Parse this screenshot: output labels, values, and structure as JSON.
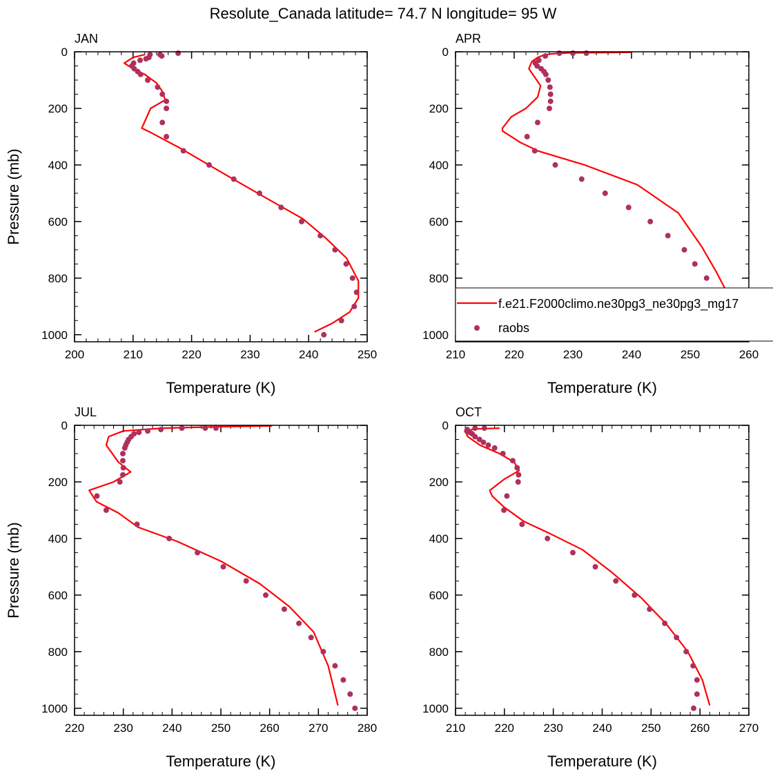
{
  "figure_title": "Resolute_Canada  latitude= 74.7 N longitude= 95 W",
  "legend": {
    "model_label": "f.e21.F2000climo.ne30pg3_ne30pg3_mg17",
    "obs_label": "raobs"
  },
  "colors": {
    "model_line": "#ff0000",
    "obs_marker": "#b0305c"
  },
  "chart_data": [
    {
      "type": "line",
      "panel_label": "JAN",
      "xlabel": "Temperature (K)",
      "ylabel": "Pressure (mb)",
      "xlim": [
        200,
        250
      ],
      "ylim": [
        1025,
        0
      ],
      "x_ticks": [
        200,
        210,
        220,
        230,
        240,
        250
      ],
      "y_ticks": [
        0,
        200,
        400,
        600,
        800,
        1000
      ],
      "series": [
        {
          "kind": "line",
          "points": [
            [
              212,
              10
            ],
            [
              210,
              20
            ],
            [
              208.5,
              40
            ],
            [
              210,
              60
            ],
            [
              212,
              80
            ],
            [
              214,
              110
            ],
            [
              215,
              140
            ],
            [
              215.5,
              170
            ],
            [
              213,
              200
            ],
            [
              211.5,
              270
            ],
            [
              213,
              285
            ],
            [
              218,
              340
            ],
            [
              225,
              425
            ],
            [
              233,
              520
            ],
            [
              239,
              590
            ],
            [
              243,
              660
            ],
            [
              246.5,
              730
            ],
            [
              248.5,
              810
            ],
            [
              248.5,
              870
            ],
            [
              247,
              920
            ],
            [
              244,
              960
            ],
            [
              241,
              990
            ]
          ]
        },
        {
          "kind": "scatter",
          "points": [
            [
              217.7,
              5
            ],
            [
              214.9,
              15
            ],
            [
              214.6,
              10
            ],
            [
              212.9,
              10
            ],
            [
              212.7,
              20
            ],
            [
              212.2,
              25
            ],
            [
              211.2,
              30
            ],
            [
              210.1,
              40
            ],
            [
              209.8,
              50
            ],
            [
              210.2,
              60
            ],
            [
              210.8,
              70
            ],
            [
              211.3,
              80
            ],
            [
              212.5,
              100
            ],
            [
              214.2,
              125
            ],
            [
              215.0,
              150
            ],
            [
              215.7,
              175
            ],
            [
              215.7,
              200
            ],
            [
              215.0,
              250
            ],
            [
              215.7,
              300
            ],
            [
              218.6,
              350
            ],
            [
              223.0,
              400
            ],
            [
              227.2,
              450
            ],
            [
              231.6,
              500
            ],
            [
              235.3,
              550
            ],
            [
              238.8,
              600
            ],
            [
              242.0,
              650
            ],
            [
              244.5,
              700
            ],
            [
              246.4,
              750
            ],
            [
              247.5,
              800
            ],
            [
              248.2,
              850
            ],
            [
              247.8,
              900
            ],
            [
              245.6,
              950
            ],
            [
              242.6,
              1000
            ]
          ]
        }
      ]
    },
    {
      "type": "line",
      "panel_label": "APR",
      "xlabel": "Temperature (K)",
      "ylabel": "",
      "xlim": [
        210,
        260
      ],
      "ylim": [
        1025,
        0
      ],
      "x_ticks": [
        210,
        220,
        230,
        240,
        250,
        260
      ],
      "y_ticks": [
        0,
        200,
        400,
        600,
        800,
        1000
      ],
      "series": [
        {
          "kind": "line",
          "points": [
            [
              240,
              2
            ],
            [
              229,
              4
            ],
            [
              226,
              8
            ],
            [
              225,
              12
            ],
            [
              224,
              20
            ],
            [
              223,
              35
            ],
            [
              222.5,
              60
            ],
            [
              223.5,
              90
            ],
            [
              224.5,
              120
            ],
            [
              224,
              160
            ],
            [
              222,
              200
            ],
            [
              219.5,
              230
            ],
            [
              218,
              270
            ],
            [
              218,
              280
            ],
            [
              221,
              320
            ],
            [
              224,
              350
            ],
            [
              232,
              400
            ],
            [
              241,
              470
            ],
            [
              248,
              570
            ],
            [
              252,
              690
            ],
            [
              254.5,
              780
            ],
            [
              256.5,
              860
            ],
            [
              256,
              940
            ],
            [
              254,
              990
            ],
            [
              253.5,
              1005
            ]
          ]
        },
        {
          "kind": "scatter",
          "points": [
            [
              232.3,
              5
            ],
            [
              230.0,
              5
            ],
            [
              227.7,
              5
            ],
            [
              225.3,
              15
            ],
            [
              224.2,
              30
            ],
            [
              223.6,
              40
            ],
            [
              223.9,
              50
            ],
            [
              224.6,
              60
            ],
            [
              225.1,
              70
            ],
            [
              225.4,
              80
            ],
            [
              225.8,
              100
            ],
            [
              226.1,
              125
            ],
            [
              226.2,
              150
            ],
            [
              226.2,
              175
            ],
            [
              226.0,
              200
            ],
            [
              224.0,
              250
            ],
            [
              222.2,
              300
            ],
            [
              223.5,
              350
            ],
            [
              227.0,
              400
            ],
            [
              231.5,
              450
            ],
            [
              235.5,
              500
            ],
            [
              239.5,
              550
            ],
            [
              243.2,
              600
            ],
            [
              246.2,
              650
            ],
            [
              249.0,
              700
            ],
            [
              250.8,
              750
            ],
            [
              252.8,
              800
            ],
            [
              254.0,
              850
            ],
            [
              254.3,
              900
            ],
            [
              253.3,
              950
            ],
            [
              251.1,
              1000
            ]
          ]
        }
      ]
    },
    {
      "type": "line",
      "panel_label": "JUL",
      "xlabel": "Temperature (K)",
      "ylabel": "Pressure (mb)",
      "xlim": [
        220,
        280
      ],
      "ylim": [
        1025,
        0
      ],
      "x_ticks": [
        220,
        230,
        240,
        250,
        260,
        270,
        280
      ],
      "y_ticks": [
        0,
        200,
        400,
        600,
        800,
        1000
      ],
      "series": [
        {
          "kind": "line",
          "points": [
            [
              260.5,
              2
            ],
            [
              250,
              5
            ],
            [
              238,
              10
            ],
            [
              230,
              20
            ],
            [
              227,
              40
            ],
            [
              226.5,
              70
            ],
            [
              229,
              130
            ],
            [
              231.5,
              165
            ],
            [
              228,
              200
            ],
            [
              223,
              230
            ],
            [
              224.5,
              270
            ],
            [
              229,
              310
            ],
            [
              233,
              360
            ],
            [
              241,
              410
            ],
            [
              250,
              480
            ],
            [
              258,
              560
            ],
            [
              264,
              640
            ],
            [
              269,
              730
            ],
            [
              272,
              850
            ],
            [
              274,
              990
            ]
          ]
        },
        {
          "kind": "scatter",
          "points": [
            [
              249.0,
              10
            ],
            [
              246.8,
              10
            ],
            [
              242.0,
              10
            ],
            [
              237.7,
              15
            ],
            [
              235.0,
              20
            ],
            [
              233.2,
              25
            ],
            [
              232.2,
              30
            ],
            [
              231.6,
              40
            ],
            [
              231.1,
              50
            ],
            [
              230.8,
              60
            ],
            [
              230.5,
              70
            ],
            [
              230.3,
              80
            ],
            [
              229.9,
              100
            ],
            [
              229.9,
              125
            ],
            [
              230.0,
              150
            ],
            [
              229.9,
              175
            ],
            [
              229.3,
              200
            ],
            [
              224.6,
              250
            ],
            [
              226.5,
              300
            ],
            [
              232.8,
              350
            ],
            [
              239.4,
              400
            ],
            [
              245.2,
              450
            ],
            [
              250.5,
              500
            ],
            [
              255.2,
              550
            ],
            [
              259.2,
              600
            ],
            [
              263.0,
              650
            ],
            [
              266.0,
              700
            ],
            [
              268.5,
              750
            ],
            [
              271.0,
              800
            ],
            [
              273.4,
              850
            ],
            [
              275.1,
              900
            ],
            [
              276.5,
              950
            ],
            [
              277.5,
              1000
            ]
          ]
        }
      ]
    },
    {
      "type": "line",
      "panel_label": "OCT",
      "xlabel": "Temperature (K)",
      "ylabel": "",
      "xlim": [
        210,
        270
      ],
      "ylim": [
        1025,
        0
      ],
      "x_ticks": [
        210,
        220,
        230,
        240,
        250,
        260,
        270
      ],
      "y_ticks": [
        0,
        200,
        400,
        600,
        800,
        1000
      ],
      "series": [
        {
          "kind": "line",
          "points": [
            [
              219,
              10
            ],
            [
              214,
              13
            ],
            [
              212,
              20
            ],
            [
              212.5,
              40
            ],
            [
              215,
              70
            ],
            [
              219,
              100
            ],
            [
              222,
              130
            ],
            [
              223,
              160
            ],
            [
              220,
              190
            ],
            [
              217,
              230
            ],
            [
              217.5,
              250
            ],
            [
              220,
              290
            ],
            [
              224,
              340
            ],
            [
              229,
              380
            ],
            [
              236,
              440
            ],
            [
              242,
              520
            ],
            [
              248,
              610
            ],
            [
              253,
              700
            ],
            [
              257.5,
              800
            ],
            [
              260.5,
              900
            ],
            [
              262,
              990
            ]
          ]
        },
        {
          "kind": "scatter",
          "points": [
            [
              215.9,
              10
            ],
            [
              214.0,
              10
            ],
            [
              212.4,
              15
            ],
            [
              212.3,
              20
            ],
            [
              212.9,
              25
            ],
            [
              213.4,
              30
            ],
            [
              214.0,
              40
            ],
            [
              214.9,
              50
            ],
            [
              215.7,
              60
            ],
            [
              216.7,
              70
            ],
            [
              218.0,
              80
            ],
            [
              219.7,
              100
            ],
            [
              221.7,
              125
            ],
            [
              222.6,
              150
            ],
            [
              222.9,
              175
            ],
            [
              222.8,
              200
            ],
            [
              220.5,
              250
            ],
            [
              219.9,
              300
            ],
            [
              223.6,
              350
            ],
            [
              228.8,
              400
            ],
            [
              234.0,
              450
            ],
            [
              238.6,
              500
            ],
            [
              242.8,
              550
            ],
            [
              246.6,
              600
            ],
            [
              249.7,
              650
            ],
            [
              252.8,
              700
            ],
            [
              255.2,
              750
            ],
            [
              257.2,
              800
            ],
            [
              258.6,
              850
            ],
            [
              259.4,
              900
            ],
            [
              259.4,
              950
            ],
            [
              258.7,
              1000
            ]
          ]
        }
      ]
    }
  ]
}
